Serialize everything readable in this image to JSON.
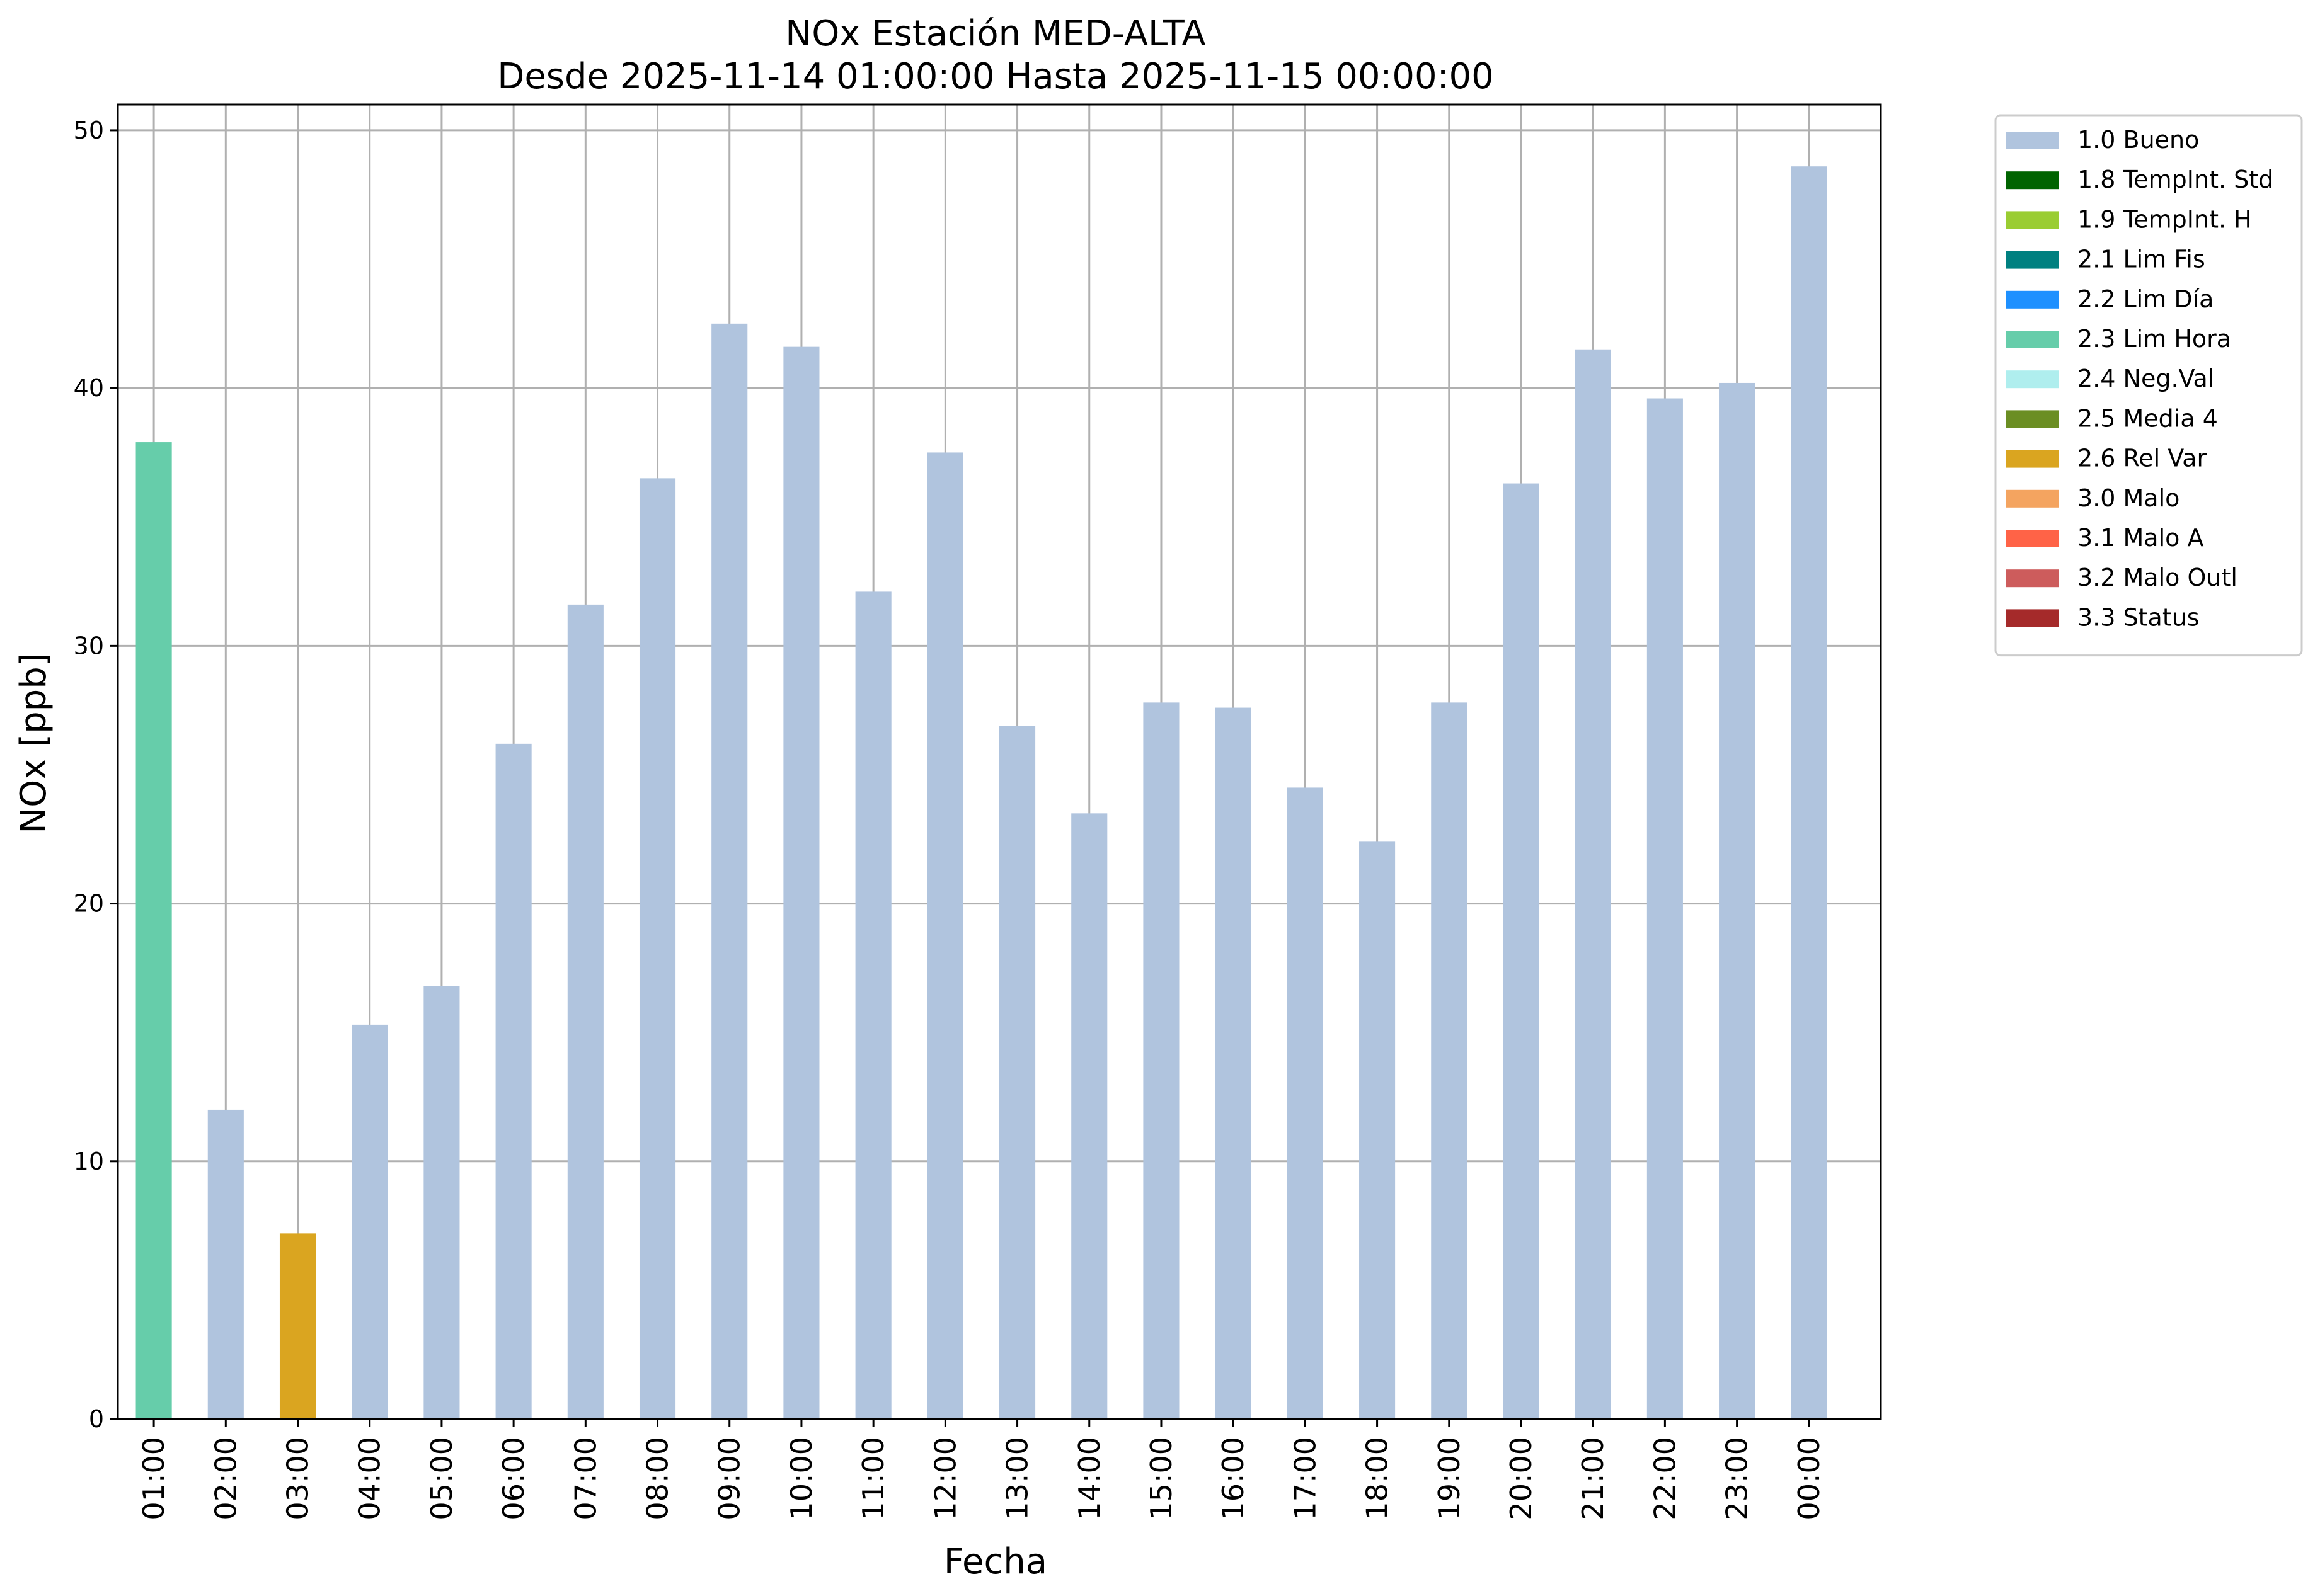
{
  "chart_data": {
    "type": "bar",
    "title": "NOx Estación MED-ALTA",
    "subtitle": "Desde 2025-11-14 01:00:00 Hasta 2025-11-15 00:00:00",
    "xlabel": "Fecha",
    "ylabel": "NOx [ppb]",
    "ylim": [
      0,
      51
    ],
    "yticks": [
      0,
      10,
      20,
      30,
      40,
      50
    ],
    "grid": true,
    "legend_position": "outside-top-right",
    "categories": [
      "01:00",
      "02:00",
      "03:00",
      "04:00",
      "05:00",
      "06:00",
      "07:00",
      "08:00",
      "09:00",
      "10:00",
      "11:00",
      "12:00",
      "13:00",
      "14:00",
      "15:00",
      "16:00",
      "17:00",
      "18:00",
      "19:00",
      "20:00",
      "21:00",
      "22:00",
      "23:00",
      "00:00"
    ],
    "values": [
      37.9,
      12.0,
      7.2,
      15.3,
      16.8,
      26.2,
      31.6,
      36.5,
      42.5,
      41.6,
      32.1,
      37.5,
      26.9,
      23.5,
      27.8,
      27.6,
      24.5,
      22.4,
      27.8,
      36.3,
      41.5,
      39.6,
      40.2,
      48.6
    ],
    "flags": [
      "2.3 Lim Hora",
      "1.0 Bueno",
      "2.6 Rel Var",
      "1.0 Bueno",
      "1.0 Bueno",
      "1.0 Bueno",
      "1.0 Bueno",
      "1.0 Bueno",
      "1.0 Bueno",
      "1.0 Bueno",
      "1.0 Bueno",
      "1.0 Bueno",
      "1.0 Bueno",
      "1.0 Bueno",
      "1.0 Bueno",
      "1.0 Bueno",
      "1.0 Bueno",
      "1.0 Bueno",
      "1.0 Bueno",
      "1.0 Bueno",
      "1.0 Bueno",
      "1.0 Bueno",
      "1.0 Bueno",
      "1.0 Bueno"
    ],
    "legend": [
      {
        "label": "1.0 Bueno",
        "color": "#b0c4de"
      },
      {
        "label": "1.8 TempInt. Std",
        "color": "#006400"
      },
      {
        "label": "1.9 TempInt. H",
        "color": "#9acd32"
      },
      {
        "label": "2.1 Lim Fis",
        "color": "#008080"
      },
      {
        "label": "2.2 Lim Día",
        "color": "#1e90ff"
      },
      {
        "label": "2.3 Lim Hora",
        "color": "#66cdaa"
      },
      {
        "label": "2.4 Neg.Val",
        "color": "#afeeee"
      },
      {
        "label": "2.5 Media 4",
        "color": "#6b8e23"
      },
      {
        "label": "2.6 Rel Var",
        "color": "#daa520"
      },
      {
        "label": "3.0 Malo",
        "color": "#f4a460"
      },
      {
        "label": "3.1 Malo A",
        "color": "#ff6347"
      },
      {
        "label": "3.2 Malo Outl",
        "color": "#cd5c5c"
      },
      {
        "label": "3.3 Status",
        "color": "#a52a2a"
      }
    ]
  }
}
